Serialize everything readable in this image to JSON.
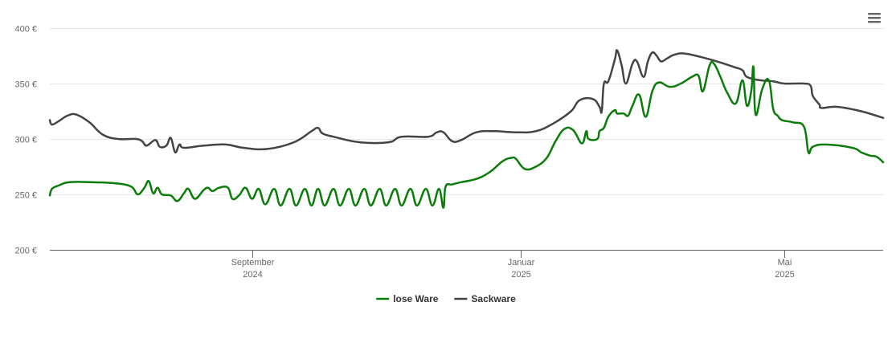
{
  "chart_data": {
    "type": "line",
    "title": "",
    "xlabel": "",
    "ylabel": "",
    "ylim": [
      200,
      400
    ],
    "xlim": [
      "2024-06-01",
      "2025-06-15"
    ],
    "y_ticks": [
      {
        "value": 200,
        "label": "200 €"
      },
      {
        "value": 250,
        "label": "250 €"
      },
      {
        "value": 300,
        "label": "300 €"
      },
      {
        "value": 350,
        "label": "350 €"
      },
      {
        "value": 400,
        "label": "400 €"
      }
    ],
    "x_ticks": [
      {
        "date": "2024-09-01",
        "line1": "September",
        "line2": "2024"
      },
      {
        "date": "2025-01-01",
        "line1": "Januar",
        "line2": "2025"
      },
      {
        "date": "2025-05-01",
        "line1": "Mai",
        "line2": "2025"
      }
    ],
    "grid": "horizontal",
    "legend_position": "bottom-center",
    "series": [
      {
        "name": "lose Ware",
        "color": "#0a7c0a",
        "points": [
          [
            "2024-06-01",
            249
          ],
          [
            "2024-06-02",
            255
          ],
          [
            "2024-06-05",
            258
          ],
          [
            "2024-06-10",
            261
          ],
          [
            "2024-06-20",
            261
          ],
          [
            "2024-07-01",
            260
          ],
          [
            "2024-07-08",
            257
          ],
          [
            "2024-07-11",
            250
          ],
          [
            "2024-07-14",
            256
          ],
          [
            "2024-07-16",
            262
          ],
          [
            "2024-07-18",
            251
          ],
          [
            "2024-07-20",
            256
          ],
          [
            "2024-07-22",
            250
          ],
          [
            "2024-07-26",
            249
          ],
          [
            "2024-07-29",
            244
          ],
          [
            "2024-08-01",
            251
          ],
          [
            "2024-08-03",
            255
          ],
          [
            "2024-08-06",
            246
          ],
          [
            "2024-08-10",
            254
          ],
          [
            "2024-08-12",
            256
          ],
          [
            "2024-08-14",
            253
          ],
          [
            "2024-08-17",
            256
          ],
          [
            "2024-08-21",
            256
          ],
          [
            "2024-08-23",
            246
          ],
          [
            "2024-08-26",
            249
          ],
          [
            "2024-08-29",
            256
          ],
          [
            "2024-09-01",
            246
          ],
          [
            "2024-09-04",
            255
          ],
          [
            "2024-09-07",
            241
          ],
          [
            "2024-09-11",
            255
          ],
          [
            "2024-09-14",
            240
          ],
          [
            "2024-09-18",
            255
          ],
          [
            "2024-09-21",
            240
          ],
          [
            "2024-09-25",
            255
          ],
          [
            "2024-09-28",
            240
          ],
          [
            "2024-10-01",
            255
          ],
          [
            "2024-10-04",
            240
          ],
          [
            "2024-10-08",
            255
          ],
          [
            "2024-10-11",
            240
          ],
          [
            "2024-10-15",
            255
          ],
          [
            "2024-10-18",
            240
          ],
          [
            "2024-10-22",
            255
          ],
          [
            "2024-10-25",
            240
          ],
          [
            "2024-10-29",
            255
          ],
          [
            "2024-11-01",
            240
          ],
          [
            "2024-11-05",
            255
          ],
          [
            "2024-11-08",
            240
          ],
          [
            "2024-11-12",
            255
          ],
          [
            "2024-11-15",
            240
          ],
          [
            "2024-11-19",
            255
          ],
          [
            "2024-11-22",
            240
          ],
          [
            "2024-11-25",
            255
          ],
          [
            "2024-11-27",
            238
          ],
          [
            "2024-11-28",
            257
          ],
          [
            "2024-12-01",
            259
          ],
          [
            "2024-12-05",
            261
          ],
          [
            "2024-12-12",
            264
          ],
          [
            "2024-12-18",
            270
          ],
          [
            "2024-12-24",
            280
          ],
          [
            "2024-12-28",
            283
          ],
          [
            "2024-12-30",
            282
          ],
          [
            "2025-01-03",
            273
          ],
          [
            "2025-01-08",
            275
          ],
          [
            "2025-01-13",
            283
          ],
          [
            "2025-01-17",
            298
          ],
          [
            "2025-01-21",
            309
          ],
          [
            "2025-01-25",
            308
          ],
          [
            "2025-01-29",
            296
          ],
          [
            "2025-01-31",
            307
          ],
          [
            "2025-02-01",
            300
          ],
          [
            "2025-02-05",
            300
          ],
          [
            "2025-02-06",
            307
          ],
          [
            "2025-02-08",
            310
          ],
          [
            "2025-02-10",
            320
          ],
          [
            "2025-02-13",
            326
          ],
          [
            "2025-02-14",
            323
          ],
          [
            "2025-02-17",
            323
          ],
          [
            "2025-02-19",
            321
          ],
          [
            "2025-02-21",
            330
          ],
          [
            "2025-02-24",
            340
          ],
          [
            "2025-02-27",
            320
          ],
          [
            "2025-03-02",
            343
          ],
          [
            "2025-03-05",
            351
          ],
          [
            "2025-03-10",
            347
          ],
          [
            "2025-03-15",
            350
          ],
          [
            "2025-03-20",
            356
          ],
          [
            "2025-03-23",
            357
          ],
          [
            "2025-03-25",
            343
          ],
          [
            "2025-03-28",
            366
          ],
          [
            "2025-03-30",
            368
          ],
          [
            "2025-04-02",
            356
          ],
          [
            "2025-04-05",
            342
          ],
          [
            "2025-04-09",
            332
          ],
          [
            "2025-04-12",
            353
          ],
          [
            "2025-04-14",
            330
          ],
          [
            "2025-04-16",
            343
          ],
          [
            "2025-04-17",
            365
          ],
          [
            "2025-04-18",
            322
          ],
          [
            "2025-04-21",
            345
          ],
          [
            "2025-04-24",
            353
          ],
          [
            "2025-04-26",
            327
          ],
          [
            "2025-04-28",
            321
          ],
          [
            "2025-04-30",
            317
          ],
          [
            "2025-05-05",
            315
          ],
          [
            "2025-05-10",
            311
          ],
          [
            "2025-05-12",
            288
          ],
          [
            "2025-05-14",
            293
          ],
          [
            "2025-05-20",
            295
          ],
          [
            "2025-06-01",
            292
          ],
          [
            "2025-06-05",
            288
          ],
          [
            "2025-06-09",
            285
          ],
          [
            "2025-06-12",
            284
          ],
          [
            "2025-06-15",
            279
          ]
        ]
      },
      {
        "name": "Sackware",
        "color": "#444444",
        "points": [
          [
            "2024-06-01",
            317
          ],
          [
            "2024-06-02",
            313
          ],
          [
            "2024-06-05",
            316
          ],
          [
            "2024-06-09",
            321
          ],
          [
            "2024-06-13",
            322
          ],
          [
            "2024-06-19",
            315
          ],
          [
            "2024-06-25",
            304
          ],
          [
            "2024-07-02",
            300
          ],
          [
            "2024-07-10",
            300
          ],
          [
            "2024-07-13",
            298
          ],
          [
            "2024-07-15",
            294
          ],
          [
            "2024-07-19",
            299
          ],
          [
            "2024-07-21",
            293
          ],
          [
            "2024-07-24",
            294
          ],
          [
            "2024-07-26",
            301
          ],
          [
            "2024-07-28",
            288
          ],
          [
            "2024-07-30",
            295
          ],
          [
            "2024-08-01",
            292
          ],
          [
            "2024-08-10",
            294
          ],
          [
            "2024-08-20",
            295
          ],
          [
            "2024-08-28",
            292
          ],
          [
            "2024-09-08",
            291
          ],
          [
            "2024-09-20",
            297
          ],
          [
            "2024-09-28",
            307
          ],
          [
            "2024-10-01",
            310
          ],
          [
            "2024-10-03",
            305
          ],
          [
            "2024-10-08",
            302
          ],
          [
            "2024-10-20",
            297
          ],
          [
            "2024-11-02",
            297
          ],
          [
            "2024-11-08",
            302
          ],
          [
            "2024-11-20",
            302
          ],
          [
            "2024-11-24",
            306
          ],
          [
            "2024-11-27",
            306
          ],
          [
            "2024-12-01",
            298
          ],
          [
            "2024-12-05",
            299
          ],
          [
            "2024-12-12",
            306
          ],
          [
            "2024-12-20",
            307
          ],
          [
            "2024-12-30",
            306
          ],
          [
            "2025-01-08",
            307
          ],
          [
            "2025-01-16",
            314
          ],
          [
            "2025-01-24",
            325
          ],
          [
            "2025-01-28",
            335
          ],
          [
            "2025-02-03",
            336
          ],
          [
            "2025-02-06",
            329
          ],
          [
            "2025-02-07",
            325
          ],
          [
            "2025-02-08",
            350
          ],
          [
            "2025-02-10",
            352
          ],
          [
            "2025-02-13",
            372
          ],
          [
            "2025-02-14",
            380
          ],
          [
            "2025-02-16",
            367
          ],
          [
            "2025-02-18",
            350
          ],
          [
            "2025-02-21",
            368
          ],
          [
            "2025-02-23",
            370
          ],
          [
            "2025-02-26",
            356
          ],
          [
            "2025-02-28",
            370
          ],
          [
            "2025-03-02",
            378
          ],
          [
            "2025-03-04",
            375
          ],
          [
            "2025-03-06",
            370
          ],
          [
            "2025-03-09",
            373
          ],
          [
            "2025-03-12",
            376
          ],
          [
            "2025-03-17",
            377
          ],
          [
            "2025-03-26",
            373
          ],
          [
            "2025-04-02",
            369
          ],
          [
            "2025-04-08",
            365
          ],
          [
            "2025-04-12",
            362
          ],
          [
            "2025-04-14",
            356
          ],
          [
            "2025-04-20",
            353
          ],
          [
            "2025-04-26",
            352
          ],
          [
            "2025-05-01",
            350
          ],
          [
            "2025-05-10",
            350
          ],
          [
            "2025-05-13",
            348
          ],
          [
            "2025-05-14",
            339
          ],
          [
            "2025-05-17",
            331
          ],
          [
            "2025-05-18",
            328
          ],
          [
            "2025-05-25",
            329
          ],
          [
            "2025-06-05",
            325
          ],
          [
            "2025-06-15",
            319
          ]
        ]
      }
    ]
  },
  "menu": {
    "icon": "hamburger-menu-icon"
  }
}
